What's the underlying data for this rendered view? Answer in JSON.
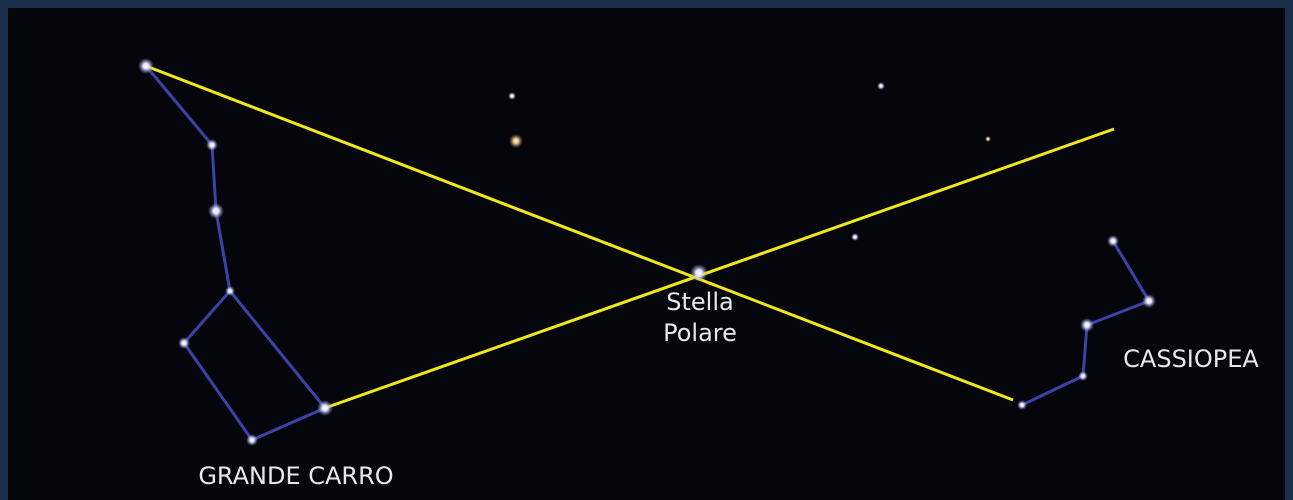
{
  "labels": {
    "polar_star": [
      "Stella",
      "Polare"
    ],
    "cassiopeia": "CASSIOPEA",
    "big_dipper": "GRANDE CARRO"
  }
}
